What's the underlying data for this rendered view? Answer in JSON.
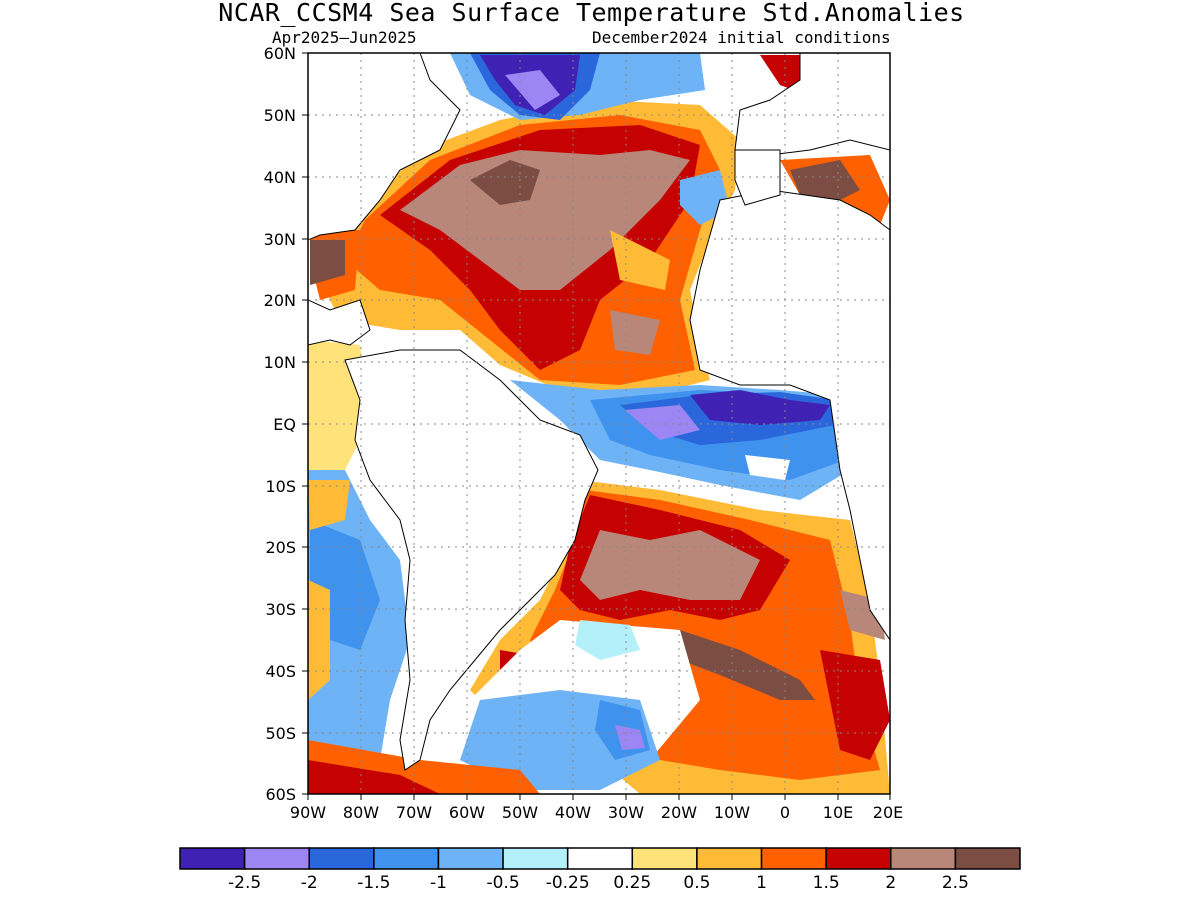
{
  "title": "NCAR_CCSM4 Sea Surface Temperature Std.Anomalies",
  "subtitle_left": "Apr2025–Jun2025",
  "subtitle_right": "December2024 initial conditions",
  "lat_labels": [
    "60N",
    "50N",
    "40N",
    "30N",
    "20N",
    "10N",
    "EQ",
    "10S",
    "20S",
    "30S",
    "40S",
    "50S",
    "60S"
  ],
  "lon_labels": [
    "90W",
    "80W",
    "70W",
    "60W",
    "50W",
    "40W",
    "30W",
    "20W",
    "10W",
    "0",
    "10E",
    "20E"
  ],
  "map_extent": {
    "lon_min": -90,
    "lon_max": 20,
    "lat_min": -60,
    "lat_max": 60
  },
  "colorbar": {
    "colors": [
      "#3f21b4",
      "#9c86f4",
      "#2a67dc",
      "#3f92ee",
      "#6eb3f6",
      "#b4f0fa",
      "#ffffff",
      "#ffe37a",
      "#ffbb36",
      "#ff6000",
      "#c50101",
      "#b8877a",
      "#7b4d43"
    ],
    "labels": [
      "-2.5",
      "-2",
      "-1.5",
      "-1",
      "-0.5",
      "-0.25",
      "0.25",
      "0.5",
      "1",
      "1.5",
      "2",
      "2.5"
    ]
  }
}
